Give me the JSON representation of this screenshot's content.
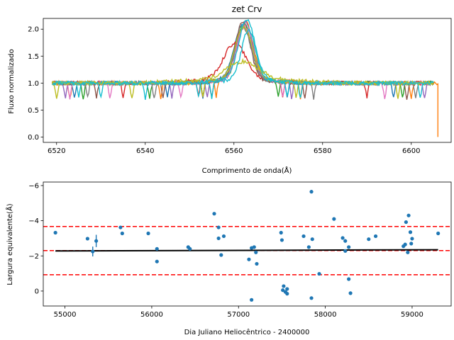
{
  "chart_data": [
    {
      "type": "line",
      "title": "zet Crv",
      "xlabel": "Comprimento de onda(Å)",
      "ylabel": "Fluxo normalizado",
      "xlim": [
        6517,
        6609
      ],
      "ylim": [
        -0.1,
        2.2
      ],
      "xticks": [
        6520,
        6540,
        6560,
        6580,
        6600
      ],
      "yticks": [
        0.0,
        0.5,
        1.0,
        1.5,
        2.0
      ],
      "grid": false,
      "series": [
        {
          "color": "#1f77b4",
          "center": 6562.0,
          "width": 2.6,
          "peak": 1.02,
          "absorb": [
            6524.0,
            6545.0,
            6553.0,
            6572.0,
            6596.0
          ],
          "x_range": [
            6519,
            6605
          ]
        },
        {
          "color": "#ff7f0e",
          "center": 6562.6,
          "width": 2.4,
          "peak": 1.06,
          "absorb": [
            6523.0,
            6543.5,
            6556.0,
            6575.0,
            6600.0
          ],
          "x_range": [
            6519,
            6606
          ]
        },
        {
          "color": "#2ca02c",
          "center": 6562.3,
          "width": 2.5,
          "peak": 1.0,
          "absorb": [
            6526.0,
            6541.0,
            6553.0,
            6570.0,
            6598.0
          ],
          "x_range": [
            6519,
            6605
          ]
        },
        {
          "color": "#d62728",
          "center": 6560.2,
          "width": 3.5,
          "peak": 0.66,
          "absorb": [
            6535.0,
            6552.0,
            6571.0,
            6590.0
          ],
          "x_range": [
            6519,
            6605
          ]
        },
        {
          "color": "#9467bd",
          "center": 6562.5,
          "width": 2.4,
          "peak": 1.05,
          "absorb": [
            6522.0,
            6546.0,
            6554.0,
            6573.0,
            6603.0
          ],
          "x_range": [
            6519,
            6604
          ]
        },
        {
          "color": "#8c564b",
          "center": 6562.0,
          "width": 2.3,
          "peak": 1.07,
          "absorb": [
            6529.0,
            6544.0,
            6555.0,
            6576.0,
            6599.0
          ],
          "x_range": [
            6519,
            6605
          ]
        },
        {
          "color": "#e377c2",
          "center": 6562.4,
          "width": 2.4,
          "peak": 0.98,
          "absorb": [
            6523.0,
            6532.0,
            6548.0,
            6571.0,
            6594.0
          ],
          "x_range": [
            6519,
            6605
          ]
        },
        {
          "color": "#7f7f7f",
          "center": 6562.1,
          "width": 2.5,
          "peak": 0.96,
          "absorb": [
            6527.0,
            6542.0,
            6553.0,
            6578.0,
            6601.0
          ],
          "x_range": [
            6519,
            6605
          ]
        },
        {
          "color": "#bcbd22",
          "center": 6562.2,
          "width": 2.7,
          "peak": 0.97,
          "absorb": [
            6520.0,
            6537.0,
            6553.0,
            6574.0,
            6597.0
          ],
          "x_range": [
            6519,
            6605
          ]
        },
        {
          "color": "#17becf",
          "center": 6562.9,
          "width": 2.6,
          "peak": 1.1,
          "absorb": [
            6525.0,
            6540.0,
            6552.0,
            6572.0,
            6602.0
          ],
          "x_range": [
            6519,
            6605
          ]
        },
        {
          "color": "#bcbd22",
          "center": 6562.0,
          "width": 5.0,
          "peak": 0.32,
          "absorb": [],
          "x_range": [
            6519,
            6605
          ]
        },
        {
          "color": "#17becf",
          "center": 6563.3,
          "width": 2.2,
          "peak": 0.9,
          "absorb": [
            6530.0,
            6555.0,
            6575.0
          ],
          "x_range": [
            6519,
            6605
          ]
        }
      ]
    },
    {
      "type": "scatter",
      "xlabel": "Dia Juliano Heliocêntrico - 2400000",
      "ylabel": "Largura equivalente(Å)",
      "xlim": [
        54750,
        59450
      ],
      "ylim": [
        0.85,
        -6.2
      ],
      "y_inverted": true,
      "xticks": [
        55000,
        56000,
        57000,
        58000,
        59000
      ],
      "yticks": [
        -6,
        -4,
        -2,
        0
      ],
      "ytick_labels": [
        "−6",
        "−4",
        "−2",
        "0"
      ],
      "grid": false,
      "point_color": "#1f77b4",
      "points": [
        [
          54890,
          -3.32
        ],
        [
          55260,
          -2.98
        ],
        [
          55320,
          -2.25
        ],
        [
          55360,
          -2.85
        ],
        [
          55640,
          -3.62
        ],
        [
          55660,
          -3.28
        ],
        [
          55960,
          -3.28
        ],
        [
          56060,
          -2.4
        ],
        [
          56060,
          -1.68
        ],
        [
          56420,
          -2.5
        ],
        [
          56440,
          -2.4
        ],
        [
          56720,
          -4.4
        ],
        [
          56770,
          -3.0
        ],
        [
          56770,
          -3.62
        ],
        [
          56800,
          -2.05
        ],
        [
          56830,
          -3.12
        ],
        [
          57120,
          -1.8
        ],
        [
          57150,
          -2.45
        ],
        [
          57150,
          0.5
        ],
        [
          57180,
          -2.5
        ],
        [
          57200,
          -2.2
        ],
        [
          57210,
          -1.55
        ],
        [
          57490,
          -3.32
        ],
        [
          57500,
          -2.9
        ],
        [
          57510,
          -0.05
        ],
        [
          57520,
          -0.28
        ],
        [
          57540,
          0.05
        ],
        [
          57560,
          -0.12
        ],
        [
          57560,
          0.15
        ],
        [
          57750,
          -3.12
        ],
        [
          57810,
          -2.5
        ],
        [
          57840,
          -5.65
        ],
        [
          57840,
          0.4
        ],
        [
          57850,
          -2.95
        ],
        [
          57930,
          -0.98
        ],
        [
          58100,
          -4.1
        ],
        [
          58200,
          -3.02
        ],
        [
          58230,
          -2.85
        ],
        [
          58230,
          -2.28
        ],
        [
          58270,
          -2.5
        ],
        [
          58270,
          -0.68
        ],
        [
          58290,
          0.12
        ],
        [
          58500,
          -2.95
        ],
        [
          58580,
          -3.12
        ],
        [
          58900,
          -2.55
        ],
        [
          58920,
          -2.65
        ],
        [
          58930,
          -3.92
        ],
        [
          58950,
          -2.2
        ],
        [
          58960,
          -4.3
        ],
        [
          58980,
          -3.35
        ],
        [
          58990,
          -2.7
        ],
        [
          59000,
          -2.98
        ],
        [
          59300,
          -3.28
        ]
      ],
      "error_bars": [
        {
          "x": 55320,
          "y": -2.25,
          "yerr": 0.28
        },
        {
          "x": 55360,
          "y": -2.85,
          "yerr": 0.35
        }
      ],
      "fit_line": {
        "color": "#000000",
        "x": [
          54890,
          59300
        ],
        "y": [
          -2.28,
          -2.35
        ]
      },
      "reference_lines": [
        {
          "y": -3.67,
          "color": "#ff0000",
          "style": "dashed"
        },
        {
          "y": -2.3,
          "color": "#ff0000",
          "style": "dashed"
        },
        {
          "y": -0.93,
          "color": "#ff0000",
          "style": "dashed"
        }
      ]
    }
  ]
}
